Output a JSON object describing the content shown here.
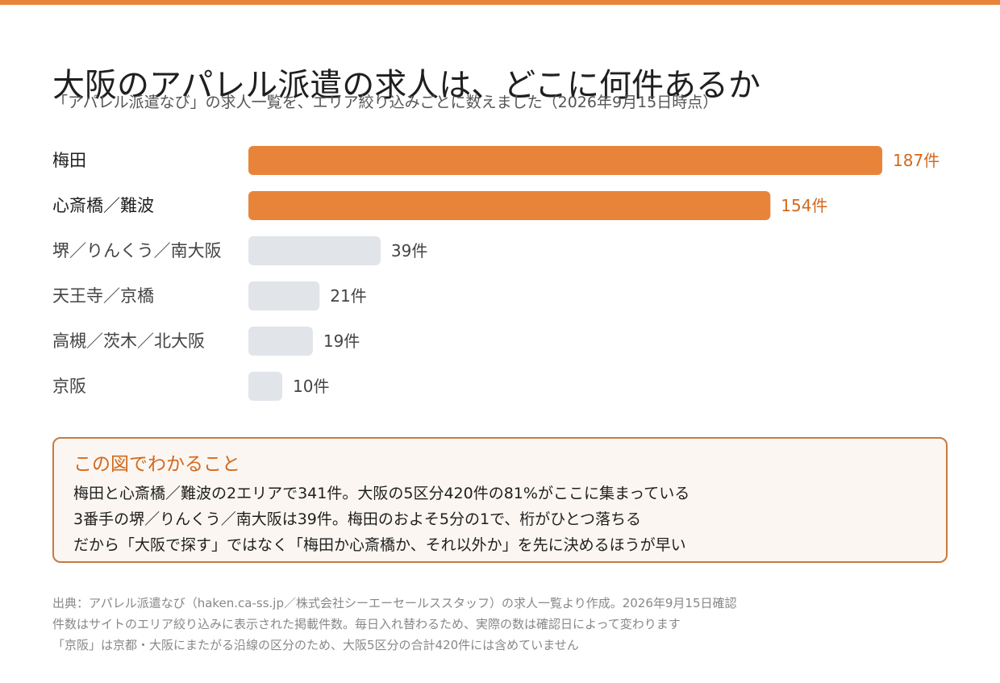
{
  "colors": {
    "accent": "#e8843a",
    "accent_text": "#d2691e",
    "muted_bar": "#e1e4e9",
    "muted_text": "#444444",
    "note_border": "#c87a3f",
    "note_bg": "#fbf6f1"
  },
  "header": {
    "title": "大阪のアパレル派遣の求人は、どこに何件あるか",
    "subtitle": "「アパレル派遣なび」の求人一覧を、エリア絞り込みごとに数えました（2026年9月15日時点）"
  },
  "chart_data": {
    "type": "bar",
    "orientation": "horizontal",
    "categories": [
      "梅田",
      "心斎橋／難波",
      "堺／りんくう／南大阪",
      "天王寺／京橋",
      "高槻／茨木／北大阪",
      "京阪"
    ],
    "values": [
      187,
      154,
      39,
      21,
      19,
      10
    ],
    "value_labels": [
      "187件",
      "154件",
      "39件",
      "21件",
      "19件",
      "10件"
    ],
    "highlighted": [
      true,
      true,
      false,
      false,
      false,
      false
    ],
    "xlim": [
      0,
      187
    ],
    "grid": false
  },
  "note": {
    "title": "この図でわかること",
    "lines": [
      "梅田と心斎橋／難波の2エリアで341件。大阪の5区分420件の81%がここに集まっている",
      "3番手の堺／りんくう／南大阪は39件。梅田のおよそ5分の1で、桁がひとつ落ちる",
      "だから「大阪で探す」ではなく「梅田か心斎橋か、それ以外か」を先に決めるほうが早い"
    ]
  },
  "footnotes": [
    "出典：アパレル派遣なび（haken.ca-ss.jp／株式会社シーエーセールススタッフ）の求人一覧より作成。2026年9月15日確認",
    "件数はサイトのエリア絞り込みに表示された掲載件数。毎日入れ替わるため、実際の数は確認日によって変わります",
    "「京阪」は京都・大阪にまたがる沿線の区分のため、大阪5区分の合計420件には含めていません"
  ]
}
